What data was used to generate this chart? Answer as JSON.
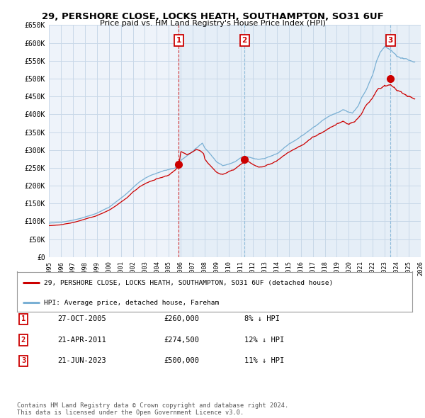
{
  "title": "29, PERSHORE CLOSE, LOCKS HEATH, SOUTHAMPTON, SO31 6UF",
  "subtitle": "Price paid vs. HM Land Registry's House Price Index (HPI)",
  "ylabel_ticks": [
    "£0",
    "£50K",
    "£100K",
    "£150K",
    "£200K",
    "£250K",
    "£300K",
    "£350K",
    "£400K",
    "£450K",
    "£500K",
    "£550K",
    "£600K",
    "£650K"
  ],
  "ytick_values": [
    0,
    50000,
    100000,
    150000,
    200000,
    250000,
    300000,
    350000,
    400000,
    450000,
    500000,
    550000,
    600000,
    650000
  ],
  "hpi_color": "#7ab0d4",
  "sale_color": "#cc0000",
  "background_color": "#eef3fa",
  "grid_color": "#c8d8e8",
  "shade_color": "#dce8f4",
  "sale_points": [
    {
      "year": 2005.82,
      "price": 260000,
      "label": "1"
    },
    {
      "year": 2011.31,
      "price": 274500,
      "label": "2"
    },
    {
      "year": 2023.47,
      "price": 500000,
      "label": "3"
    }
  ],
  "legend_house_label": "29, PERSHORE CLOSE, LOCKS HEATH, SOUTHAMPTON, SO31 6UF (detached house)",
  "legend_hpi_label": "HPI: Average price, detached house, Fareham",
  "table_rows": [
    {
      "num": "1",
      "date": "27-OCT-2005",
      "price": "£260,000",
      "pct": "8% ↓ HPI"
    },
    {
      "num": "2",
      "date": "21-APR-2011",
      "price": "£274,500",
      "pct": "12% ↓ HPI"
    },
    {
      "num": "3",
      "date": "21-JUN-2023",
      "price": "£500,000",
      "pct": "11% ↓ HPI"
    }
  ],
  "footer": "Contains HM Land Registry data © Crown copyright and database right 2024.\nThis data is licensed under the Open Government Licence v3.0.",
  "xmin": 1995,
  "xmax": 2026,
  "ymin": 0,
  "ymax": 650000
}
